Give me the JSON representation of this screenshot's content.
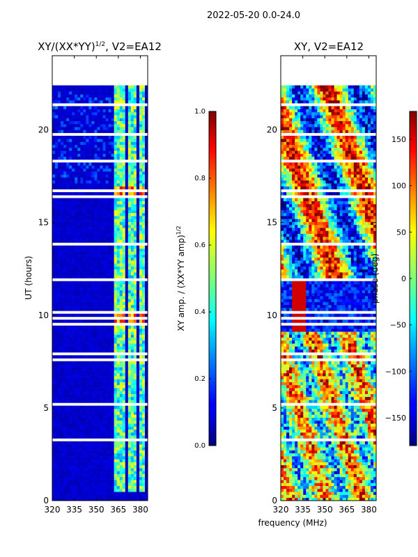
{
  "figure": {
    "suptitle": "2022-05-20 0.0-24.0",
    "xlabel": "frequency (MHz)"
  },
  "chart_data": [
    {
      "type": "heatmap",
      "title": "XY/(XX*YY)",
      "title_exponent": "1/2",
      "title_suffix": ", V2=EA12",
      "ylabel": "UT (hours)",
      "xlim": [
        320,
        385
      ],
      "ylim": [
        0,
        24
      ],
      "xticks": [
        320,
        335,
        350,
        365,
        380
      ],
      "yticks": [
        0,
        5,
        10,
        15,
        20
      ],
      "colorbar": {
        "label": "XY amp. / (XX*YY amp)",
        "label_exponent": "1/2",
        "range": [
          0.0,
          1.0
        ],
        "ticks": [
          "0.0",
          "0.2",
          "0.4",
          "0.6",
          "0.8",
          "1.0"
        ],
        "colormap": "jet"
      }
    },
    {
      "type": "heatmap",
      "title": "XY, V2=EA12",
      "xlim": [
        320,
        385
      ],
      "ylim": [
        0,
        24
      ],
      "xticks": [
        320,
        335,
        350,
        365,
        380
      ],
      "yticks": [
        0,
        5,
        10,
        15,
        20
      ],
      "colorbar": {
        "label": "phase (deg)",
        "range": [
          -180,
          180
        ],
        "ticks": [
          "150",
          "100",
          "50",
          "0",
          "−50",
          "−100",
          "−150"
        ],
        "colormap": "jet"
      }
    }
  ]
}
